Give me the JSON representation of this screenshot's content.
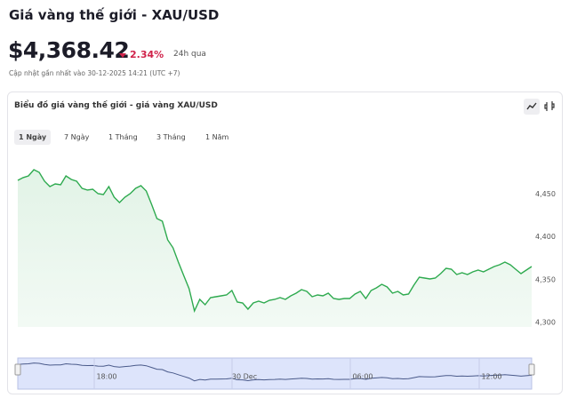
{
  "header": {
    "title": "Giá vàng thế giới - XAU/USD",
    "price": "$4,368.42",
    "change": "2.34%",
    "period": "24h qua",
    "updated": "Cập nhật gần nhất vào 30-12-2025 14:21 (UTC +7)"
  },
  "card_title": "Biểu đồ giá vàng thế giới - giá vàng XAU/USD",
  "tabs": [
    "1 Ngày",
    "7 Ngày",
    "1 Tháng",
    "3 Tháng",
    "1 Năm"
  ],
  "navigator": {
    "labels": [
      "18:00",
      "30 Dec",
      "06:00",
      "12:00"
    ]
  },
  "chart_data": {
    "type": "line",
    "color": "#2eaa4f",
    "ylim": [
      4295,
      4500
    ],
    "yticks": [
      {
        "value": 4300,
        "label": "4,300"
      },
      {
        "value": 4350,
        "label": "4,350"
      },
      {
        "value": 4400,
        "label": "4,400"
      },
      {
        "value": 4450,
        "label": "4,450"
      }
    ],
    "values": [
      4465.8,
      4469.0,
      4471.0,
      4478.3,
      4475.2,
      4464.8,
      4458.6,
      4461.7,
      4460.7,
      4471.0,
      4466.9,
      4464.8,
      4456.5,
      4454.5,
      4455.5,
      4450.3,
      4449.3,
      4458.6,
      4446.2,
      4440.0,
      4446.2,
      4450.3,
      4456.5,
      4459.6,
      4453.4,
      4437.9,
      4421.3,
      4418.2,
      4396.5,
      4387.2,
      4370.6,
      4355.1,
      4339.5,
      4313.6,
      4327.1,
      4320.9,
      4329.2,
      4330.2,
      4331.2,
      4332.3,
      4337.5,
      4324.0,
      4323.0,
      4315.7,
      4323.0,
      4325.0,
      4323.0,
      4326.1,
      4327.1,
      4329.2,
      4327.1,
      4331.2,
      4334.3,
      4338.5,
      4336.4,
      4330.2,
      4332.3,
      4331.2,
      4334.3,
      4328.1,
      4327.1,
      4328.1,
      4328.1,
      4333.3,
      4336.4,
      4328.1,
      4337.5,
      4340.6,
      4344.7,
      4341.6,
      4334.3,
      4336.4,
      4332.3,
      4333.3,
      4343.7,
      4353.0,
      4351.9,
      4350.9,
      4351.9,
      4357.1,
      4363.3,
      4362.3,
      4356.1,
      4358.2,
      4356.1,
      4359.2,
      4361.3,
      4359.2,
      4362.3,
      4365.4,
      4367.5,
      4370.6,
      4367.5,
      4362.3,
      4357.1,
      4361.3,
      4365.4
    ]
  }
}
